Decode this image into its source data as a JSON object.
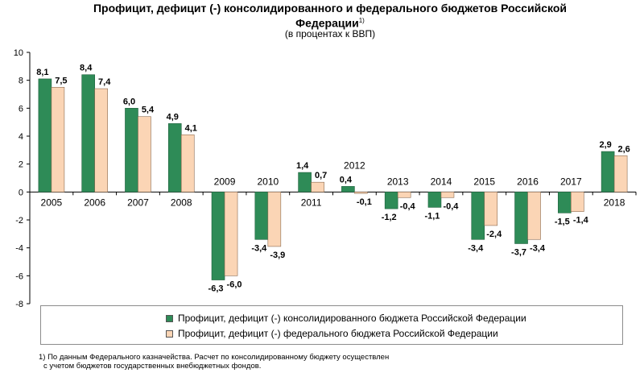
{
  "title_line1": "Профицит, дефицит (-) консолидированного и федерального бюджетов Российской",
  "title_line2": "Федерации",
  "title_sup": "1)",
  "subtitle": "(в процентах к ВВП)",
  "legend": {
    "series1": "Профицит, дефицит (-) консолидированного бюджета Российской Федерации",
    "series2": "Профицит, дефицит (-) федерального бюджета Российской Федерации"
  },
  "footnote_line1": "1) По данным Федерального казначейства. Расчет по консолидированному бюджету осуществлен",
  "footnote_line2": "с учетом бюджетов государственных внебюджетных фондов.",
  "colors": {
    "series1": "#2e8b57",
    "series2": "#fbd5b5",
    "series1_stroke": "#1f5f3c",
    "series2_stroke": "#8a6a50"
  },
  "chart_data": {
    "type": "bar",
    "categories": [
      "2005",
      "2006",
      "2007",
      "2008",
      "2009",
      "2010",
      "2011",
      "2012",
      "2013",
      "2014",
      "2015",
      "2016",
      "2017",
      "2018"
    ],
    "series": [
      {
        "name": "Профицит, дефицит (-) консолидированного бюджета Российской Федерации",
        "values": [
          8.1,
          8.4,
          6.0,
          4.9,
          -6.3,
          -3.4,
          1.4,
          0.4,
          -1.2,
          -1.1,
          -3.4,
          -3.7,
          -1.5,
          2.9
        ],
        "labels": [
          "8,1",
          "8,4",
          "6,0",
          "4,9",
          "-6,3",
          "-3,4",
          "1,4",
          "0,4",
          "-1,2",
          "-1,1",
          "-3,4",
          "-3,7",
          "-1,5",
          "2,9"
        ]
      },
      {
        "name": "Профицит, дефицит (-) федерального бюджета Российской Федерации",
        "values": [
          7.5,
          7.4,
          5.4,
          4.1,
          -6.0,
          -3.9,
          0.7,
          -0.1,
          -0.4,
          -0.4,
          -2.4,
          -3.4,
          -1.4,
          2.6
        ],
        "labels": [
          "7,5",
          "7,4",
          "5,4",
          "4,1",
          "-6,0",
          "-3,9",
          "0,7",
          "-0,1",
          "-0,4",
          "-0,4",
          "-2,4",
          "-3,4",
          "-1,4",
          "2,6"
        ]
      }
    ],
    "ylim": [
      -8,
      10
    ],
    "yticks": [
      10,
      8,
      6,
      4,
      2,
      0,
      -2,
      -4,
      -6,
      -8
    ],
    "category_label_position": [
      "below",
      "below",
      "below",
      "below",
      "above",
      "above",
      "below",
      "above",
      "above",
      "above",
      "above",
      "above",
      "above",
      "below"
    ],
    "grid": false,
    "legend_position": "bottom"
  }
}
